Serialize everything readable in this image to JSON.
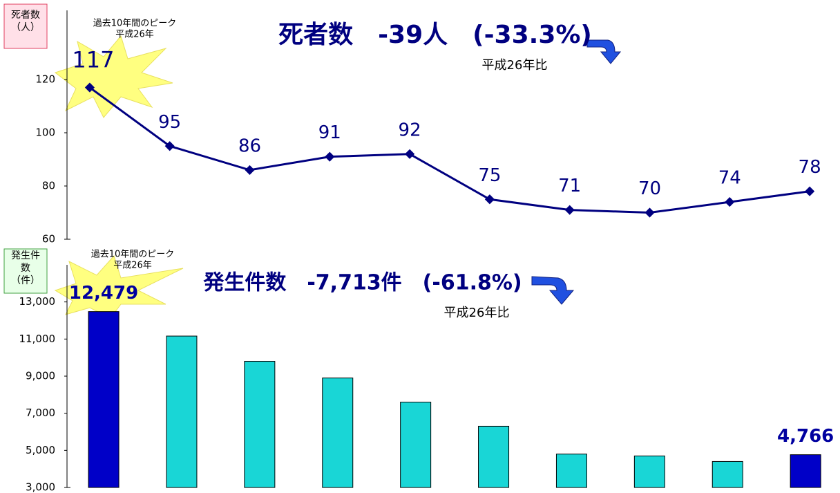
{
  "chart_data": [
    {
      "type": "line",
      "title": "死者数　-39人　(-33.3%)",
      "subtitle": "平成26年比",
      "ylabel": [
        "死者数",
        "（人）"
      ],
      "annotation": [
        "過去10年間のピーク",
        "平成26年"
      ],
      "categories": [
        null,
        null,
        null,
        null,
        null,
        null,
        null,
        null,
        null,
        null
      ],
      "values": [
        117,
        95,
        86,
        91,
        92,
        75,
        71,
        70,
        74,
        78
      ],
      "color": "#000080",
      "ylim": [
        60,
        140
      ],
      "yticks": [
        60,
        80,
        100,
        120
      ]
    },
    {
      "type": "bar",
      "title": "発生件数　-7,713件　(-61.8%)",
      "subtitle": "平成26年比",
      "ylabel": [
        "発生件",
        "数",
        "（件）"
      ],
      "annotation": [
        "過去10年間のピーク",
        "平成26年"
      ],
      "categories": [
        null,
        null,
        null,
        null,
        null,
        null,
        null,
        null,
        null,
        null
      ],
      "values": [
        12479,
        11160,
        9800,
        8900,
        7600,
        6300,
        4800,
        4700,
        4400,
        4766
      ],
      "value_labels": [
        "12,479",
        null,
        null,
        null,
        null,
        null,
        null,
        null,
        null,
        "4,766"
      ],
      "colors": [
        "#0000c8",
        "#19d6d6",
        "#19d6d6",
        "#19d6d6",
        "#19d6d6",
        "#19d6d6",
        "#19d6d6",
        "#19d6d6",
        "#19d6d6",
        "#0000c8"
      ],
      "ylim": [
        3000,
        15000
      ],
      "yticks": [
        {
          "value": 3000,
          "label": "3,000"
        },
        {
          "value": 5000,
          "label": "5,000"
        },
        {
          "value": 7000,
          "label": "7,000"
        },
        {
          "value": 9000,
          "label": "9,000"
        },
        {
          "value": 11000,
          "label": "11,000"
        },
        {
          "value": 13000,
          "label": "13,000"
        }
      ]
    }
  ]
}
